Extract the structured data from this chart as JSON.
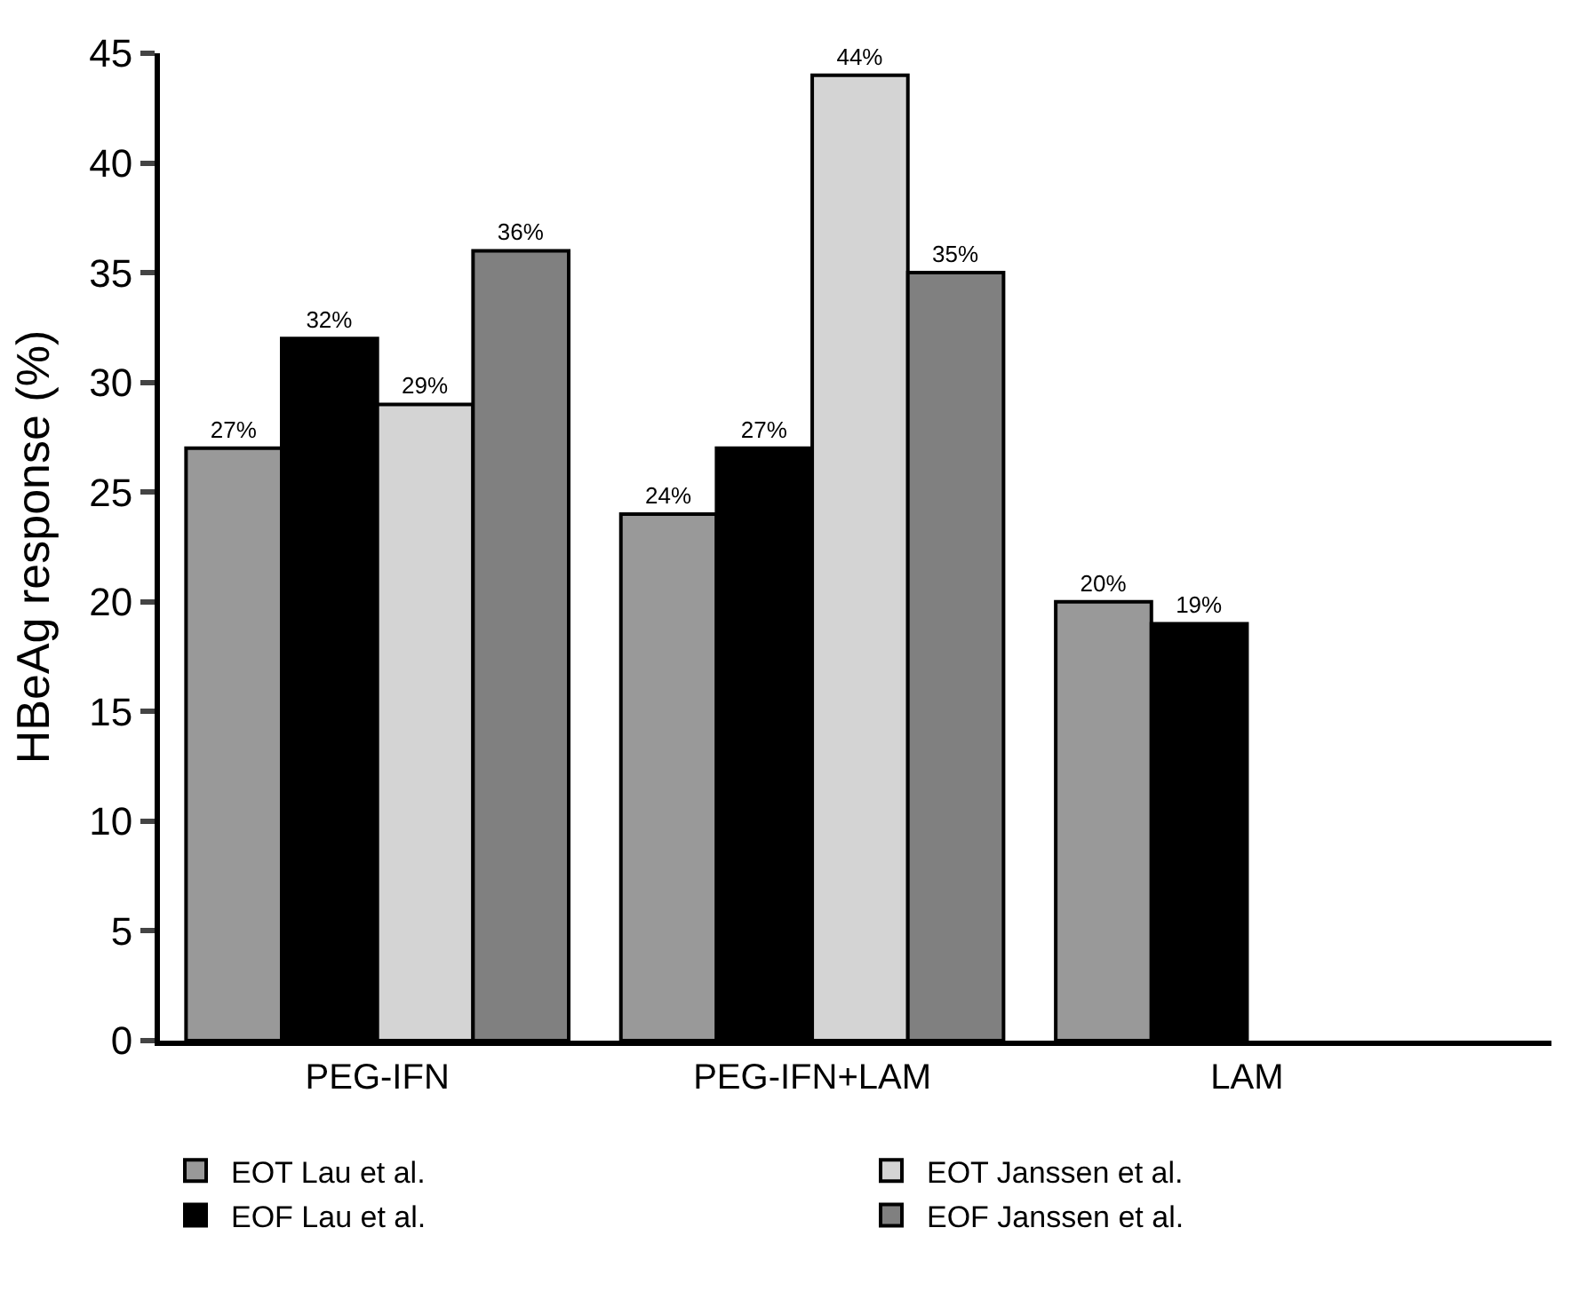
{
  "chart_data": {
    "type": "bar",
    "ylabel": "HBeAg response (%)",
    "categories": [
      "PEG-IFN",
      "PEG-IFN+LAM",
      "LAM"
    ],
    "series": [
      {
        "name": "EOT Lau et al.",
        "color": "#999999",
        "values": [
          27,
          24,
          20
        ],
        "value_labels": [
          "27%",
          "24%",
          "20%"
        ]
      },
      {
        "name": "EOF Lau et al.",
        "color": "#000000",
        "values": [
          32,
          27,
          19
        ],
        "value_labels": [
          "32%",
          "27%",
          "19%"
        ]
      },
      {
        "name": "EOT Janssen et al.",
        "color": "#d4d4d4",
        "values": [
          29,
          44,
          null
        ],
        "value_labels": [
          "29%",
          "44%",
          null
        ]
      },
      {
        "name": "EOF Janssen et al.",
        "color": "#808080",
        "values": [
          36,
          35,
          null
        ],
        "value_labels": [
          "36%",
          "35%",
          null
        ]
      }
    ],
    "ylim": [
      0,
      45
    ],
    "yticks": [
      0,
      5,
      10,
      15,
      20,
      25,
      30,
      35,
      40,
      45
    ],
    "legend": "bottom"
  }
}
